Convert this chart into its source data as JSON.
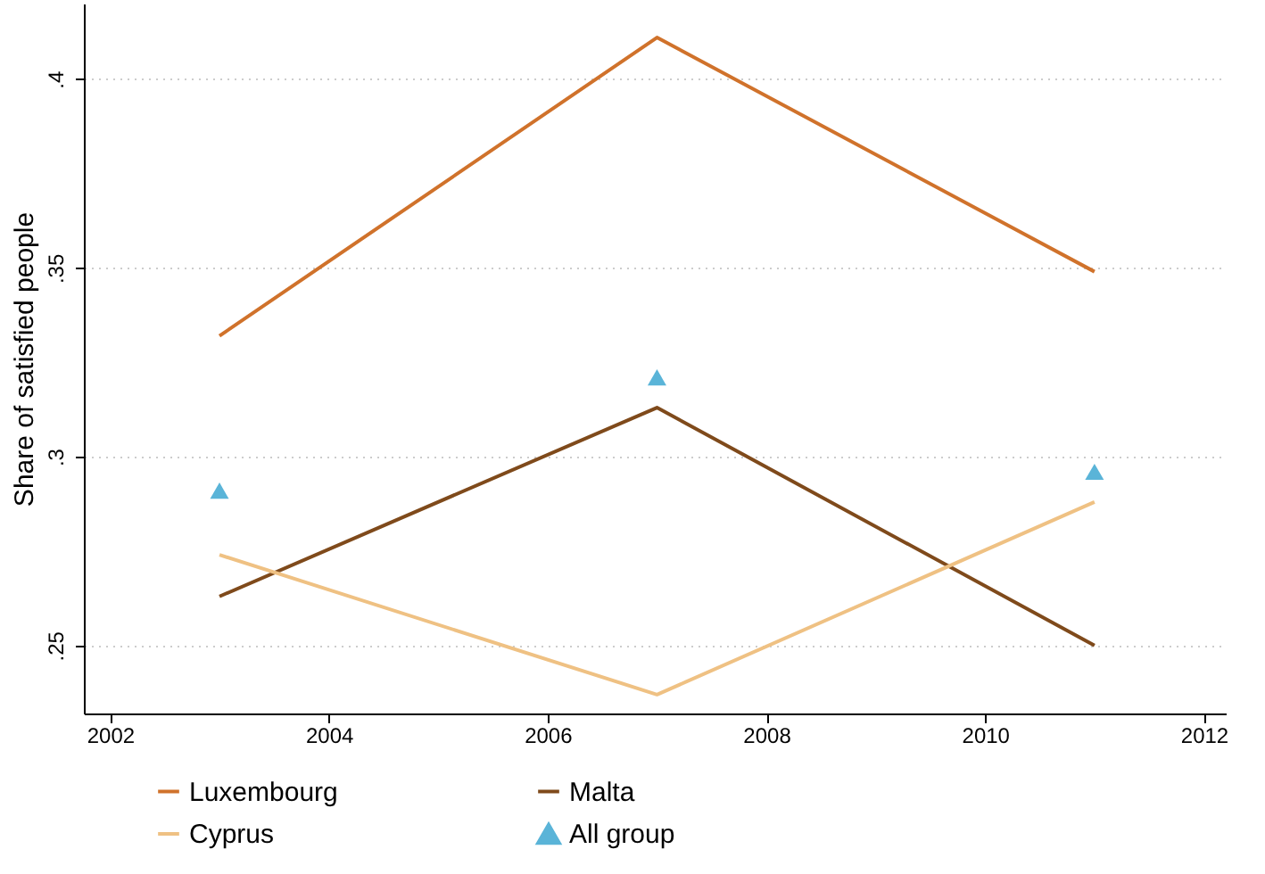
{
  "chart_data": {
    "type": "line",
    "ylabel": "Share of satisfied people",
    "x": [
      2003,
      2007,
      2011
    ],
    "xlim": [
      2001.76,
      2012.2
    ],
    "xticks": [
      2002,
      2004,
      2006,
      2008,
      2010,
      2012
    ],
    "ylim": [
      0.232,
      0.42
    ],
    "yticks": [
      {
        "value": 0.25,
        "label": ".25"
      },
      {
        "value": 0.3,
        "label": ".3"
      },
      {
        "value": 0.35,
        "label": ".35"
      },
      {
        "value": 0.4,
        "label": ".4"
      }
    ],
    "grid": "y",
    "legend": "bottom",
    "line_style": "solid",
    "series": [
      {
        "name": "Luxembourg",
        "color": "#d0722b",
        "values": [
          0.332,
          0.411,
          0.349
        ]
      },
      {
        "name": "Malta",
        "color": "#7f4a1b",
        "values": [
          0.263,
          0.313,
          0.25
        ]
      },
      {
        "name": "Cyprus",
        "color": "#efc183",
        "values": [
          0.274,
          0.237,
          0.288
        ]
      },
      {
        "name": "All group",
        "type": "scatter",
        "marker": "triangle",
        "color": "#5ab4d8",
        "values": [
          0.291,
          0.321,
          0.296
        ]
      }
    ]
  }
}
